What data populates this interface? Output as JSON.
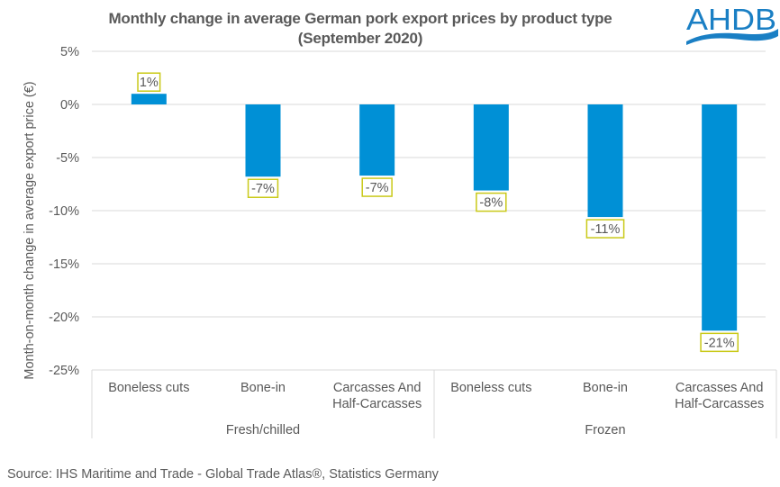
{
  "header": {
    "title_line1": "Monthly change in average German pork export prices by product type",
    "title_line2": "(September 2020)",
    "logo_text": "AHDB"
  },
  "footer": {
    "source": "Source: IHS Maritime and Trade - Global Trade Atlas®, Statistics Germany"
  },
  "colors": {
    "bar": "#0090D6",
    "label_border": "#C9C918",
    "text": "#595959",
    "grid": "#D9D9D9",
    "logo": "#1A7FC4"
  },
  "chart_data": {
    "type": "bar",
    "title": "Monthly change in average German pork export prices by product type (September 2020)",
    "xlabel": "",
    "ylabel": "Month-on-month  change in  average export price (€)",
    "ylim": [
      -25,
      5
    ],
    "yticks": [
      5,
      0,
      -5,
      -10,
      -15,
      -20,
      -25
    ],
    "ytick_labels": [
      "5%",
      "0%",
      "-5%",
      "-10%",
      "-15%",
      "-20%",
      "-25%"
    ],
    "grid": true,
    "legend": "none",
    "categories": [
      {
        "label_lines": [
          "Boneless cuts"
        ],
        "group": "Fresh/chilled"
      },
      {
        "label_lines": [
          "Bone-in"
        ],
        "group": "Fresh/chilled"
      },
      {
        "label_lines": [
          "Carcasses And",
          "Half-Carcasses"
        ],
        "group": "Fresh/chilled"
      },
      {
        "label_lines": [
          "Boneless cuts"
        ],
        "group": "Frozen"
      },
      {
        "label_lines": [
          "Bone-in"
        ],
        "group": "Frozen"
      },
      {
        "label_lines": [
          "Carcasses And",
          "Half-Carcasses"
        ],
        "group": "Frozen"
      }
    ],
    "groups": [
      "Fresh/chilled",
      "Frozen"
    ],
    "values": [
      1.0,
      -6.8,
      -6.7,
      -8.1,
      -10.6,
      -21.3
    ],
    "data_labels": [
      "1%",
      "-7%",
      "-7%",
      "-8%",
      "-11%",
      "-21%"
    ]
  }
}
